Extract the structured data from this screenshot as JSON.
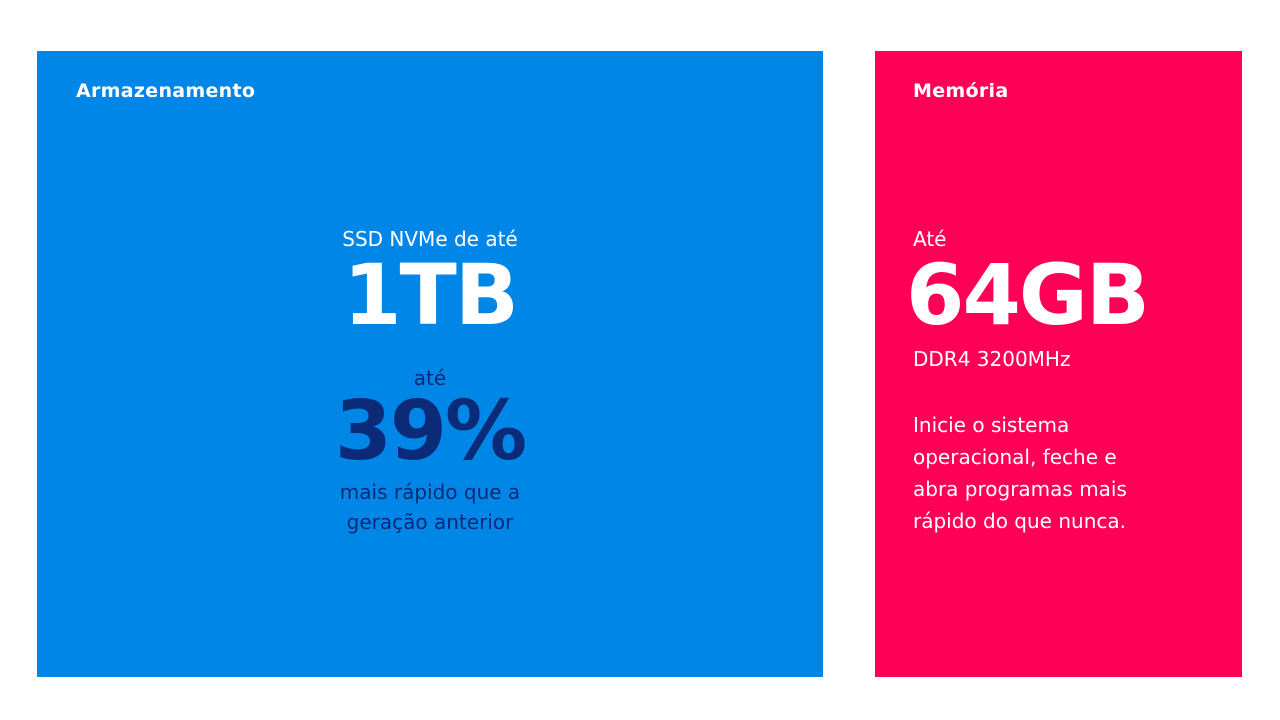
{
  "storage": {
    "title": "Armazenamento",
    "pre": "SSD NVMe de até",
    "big": "1TB",
    "ate": "até",
    "percent": "39%",
    "desc_line1": "mais rápido que a",
    "desc_line2": "geração anterior",
    "color": "#0086e6",
    "accent_text_color": "#0b2a78"
  },
  "memory": {
    "title": "Memória",
    "pre": "Até",
    "big": "64GB",
    "sub": "DDR4 3200MHz",
    "desc_line1": "Inicie o sistema",
    "desc_line2": "operacional, feche e",
    "desc_line3": "abra programas mais",
    "desc_line4": "rápido do que nunca.",
    "color": "#ff0057"
  }
}
